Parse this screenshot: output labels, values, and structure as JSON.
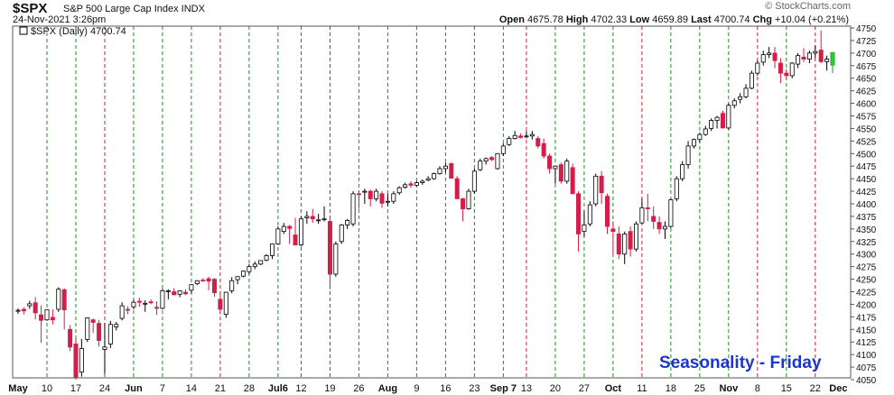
{
  "header": {
    "symbol": "$SPX",
    "description": "S&P 500 Large Cap Index  INDX",
    "datetime": "24-Nov-2021 3:26pm",
    "open_label": "Open",
    "open": "4675.78",
    "high_label": "High",
    "high": "4702.33",
    "low_label": "Low",
    "low": "4659.89",
    "last_label": "Last",
    "last": "4700.74",
    "chg_label": "Chg",
    "chg": "+10.04 (+0.21%)",
    "watermark": "© StockCharts.com"
  },
  "legend": {
    "label": "$SPX (Daily) 4700.74"
  },
  "annotation": {
    "text": "Seasonality - Friday"
  },
  "colors": {
    "up": "#ffffff",
    "down": "#d41e4a",
    "last_up": "#33cc33",
    "green_grid": "#1a8f1a",
    "red_grid": "#cc2222",
    "text_blue": "#1c37c9"
  },
  "chart_data": {
    "type": "candlestick",
    "ylim": [
      4050,
      4750
    ],
    "y_ticks": [
      4050,
      4075,
      4100,
      4125,
      4150,
      4175,
      4200,
      4225,
      4250,
      4275,
      4300,
      4325,
      4350,
      4375,
      4400,
      4425,
      4450,
      4475,
      4500,
      4525,
      4550,
      4575,
      4600,
      4625,
      4650,
      4675,
      4700,
      4725,
      4750
    ],
    "x_labels": [
      "May",
      "10",
      "17",
      "24",
      "Jun",
      "7",
      "14",
      "21",
      "28",
      "Jul6",
      "12",
      "19",
      "26",
      "Aug",
      "9",
      "16",
      "23",
      "Sep 7",
      "13",
      "20",
      "27",
      "Oct",
      "11",
      "18",
      "25",
      "Nov",
      "8",
      "15",
      "22",
      "Dec"
    ],
    "x_label_index": [
      0,
      5,
      10,
      15,
      20,
      25,
      30,
      35,
      40,
      45,
      49,
      54,
      59,
      64,
      69,
      74,
      79,
      84,
      88,
      93,
      98,
      103,
      108,
      113,
      118,
      123,
      128,
      133,
      138,
      142
    ],
    "grid_red_index": [
      15,
      35,
      54,
      88,
      108,
      128,
      138
    ],
    "candles": [
      {
        "o": 4187,
        "h": 4192,
        "l": 4181,
        "c": 4188
      },
      {
        "o": 4190,
        "h": 4194,
        "l": 4180,
        "c": 4187
      },
      {
        "o": 4197,
        "h": 4207,
        "l": 4191,
        "c": 4201
      },
      {
        "o": 4203,
        "h": 4214,
        "l": 4170,
        "c": 4183
      },
      {
        "o": 4179,
        "h": 4198,
        "l": 4123,
        "c": 4168
      },
      {
        "o": 4169,
        "h": 4189,
        "l": 4167,
        "c": 4189
      },
      {
        "o": 4174,
        "h": 4190,
        "l": 4160,
        "c": 4169
      },
      {
        "o": 4190,
        "h": 4234,
        "l": 4185,
        "c": 4230
      },
      {
        "o": 4229,
        "h": 4232,
        "l": 4150,
        "c": 4189
      },
      {
        "o": 4150,
        "h": 4159,
        "l": 4107,
        "c": 4115
      },
      {
        "o": 4121,
        "h": 4132,
        "l": 4050,
        "c": 4055
      },
      {
        "o": 4065,
        "h": 4131,
        "l": 4056,
        "c": 4112
      },
      {
        "o": 4130,
        "h": 4174,
        "l": 4125,
        "c": 4173
      },
      {
        "o": 4169,
        "h": 4172,
        "l": 4143,
        "c": 4164
      },
      {
        "o": 4162,
        "h": 4169,
        "l": 4116,
        "c": 4128
      },
      {
        "o": 4110,
        "h": 4163,
        "l": 4062,
        "c": 4115
      },
      {
        "o": 4121,
        "h": 4167,
        "l": 4113,
        "c": 4160
      },
      {
        "o": 4155,
        "h": 4165,
        "l": 4148,
        "c": 4160
      },
      {
        "o": 4172,
        "h": 4204,
        "l": 4168,
        "c": 4197
      },
      {
        "o": 4190,
        "h": 4196,
        "l": 4180,
        "c": 4188
      },
      {
        "o": 4195,
        "h": 4209,
        "l": 4190,
        "c": 4204
      },
      {
        "o": 4206,
        "h": 4213,
        "l": 4195,
        "c": 4204
      },
      {
        "o": 4201,
        "h": 4208,
        "l": 4185,
        "c": 4202
      },
      {
        "o": 4205,
        "h": 4210,
        "l": 4200,
        "c": 4203
      },
      {
        "o": 4194,
        "h": 4206,
        "l": 4179,
        "c": 4192
      },
      {
        "o": 4192,
        "h": 4231,
        "l": 4190,
        "c": 4227
      },
      {
        "o": 4227,
        "h": 4230,
        "l": 4210,
        "c": 4227
      },
      {
        "o": 4225,
        "h": 4232,
        "l": 4218,
        "c": 4219
      },
      {
        "o": 4220,
        "h": 4228,
        "l": 4214,
        "c": 4227
      },
      {
        "o": 4224,
        "h": 4230,
        "l": 4218,
        "c": 4221
      },
      {
        "o": 4228,
        "h": 4240,
        "l": 4222,
        "c": 4239
      },
      {
        "o": 4241,
        "h": 4248,
        "l": 4238,
        "c": 4247
      },
      {
        "o": 4248,
        "h": 4252,
        "l": 4245,
        "c": 4247
      },
      {
        "o": 4251,
        "h": 4255,
        "l": 4228,
        "c": 4246
      },
      {
        "o": 4250,
        "h": 4252,
        "l": 4215,
        "c": 4223
      },
      {
        "o": 4210,
        "h": 4226,
        "l": 4180,
        "c": 4190
      },
      {
        "o": 4180,
        "h": 4225,
        "l": 4173,
        "c": 4224
      },
      {
        "o": 4227,
        "h": 4254,
        "l": 4222,
        "c": 4247
      },
      {
        "o": 4249,
        "h": 4255,
        "l": 4240,
        "c": 4255
      },
      {
        "o": 4256,
        "h": 4267,
        "l": 4254,
        "c": 4266
      },
      {
        "o": 4265,
        "h": 4280,
        "l": 4260,
        "c": 4275
      },
      {
        "o": 4275,
        "h": 4285,
        "l": 4270,
        "c": 4280
      },
      {
        "o": 4280,
        "h": 4287,
        "l": 4278,
        "c": 4287
      },
      {
        "o": 4288,
        "h": 4300,
        "l": 4286,
        "c": 4297
      },
      {
        "o": 4297,
        "h": 4320,
        "l": 4290,
        "c": 4320
      },
      {
        "o": 4320,
        "h": 4355,
        "l": 4318,
        "c": 4350
      },
      {
        "o": 4345,
        "h": 4362,
        "l": 4340,
        "c": 4355
      },
      {
        "o": 4355,
        "h": 4358,
        "l": 4320,
        "c": 4351
      },
      {
        "o": 4338,
        "h": 4372,
        "l": 4320,
        "c": 4318
      },
      {
        "o": 4318,
        "h": 4375,
        "l": 4315,
        "c": 4370
      },
      {
        "o": 4372,
        "h": 4385,
        "l": 4360,
        "c": 4375
      },
      {
        "o": 4375,
        "h": 4390,
        "l": 4362,
        "c": 4370
      },
      {
        "o": 4368,
        "h": 4380,
        "l": 4360,
        "c": 4368
      },
      {
        "o": 4370,
        "h": 4395,
        "l": 4365,
        "c": 4370
      },
      {
        "o": 4365,
        "h": 4370,
        "l": 4230,
        "c": 4260
      },
      {
        "o": 4260,
        "h": 4325,
        "l": 4255,
        "c": 4320
      },
      {
        "o": 4325,
        "h": 4360,
        "l": 4320,
        "c": 4358
      },
      {
        "o": 4358,
        "h": 4370,
        "l": 4350,
        "c": 4367
      },
      {
        "o": 4360,
        "h": 4425,
        "l": 4355,
        "c": 4420
      },
      {
        "o": 4420,
        "h": 4425,
        "l": 4390,
        "c": 4419
      },
      {
        "o": 4425,
        "h": 4430,
        "l": 4400,
        "c": 4425
      },
      {
        "o": 4425,
        "h": 4428,
        "l": 4395,
        "c": 4410
      },
      {
        "o": 4410,
        "h": 4430,
        "l": 4405,
        "c": 4425
      },
      {
        "o": 4420,
        "h": 4425,
        "l": 4392,
        "c": 4401
      },
      {
        "o": 4405,
        "h": 4420,
        "l": 4395,
        "c": 4405
      },
      {
        "o": 4405,
        "h": 4425,
        "l": 4400,
        "c": 4420
      },
      {
        "o": 4422,
        "h": 4435,
        "l": 4418,
        "c": 4432
      },
      {
        "o": 4433,
        "h": 4442,
        "l": 4430,
        "c": 4438
      },
      {
        "o": 4440,
        "h": 4445,
        "l": 4432,
        "c": 4437
      },
      {
        "o": 4437,
        "h": 4445,
        "l": 4435,
        "c": 4442
      },
      {
        "o": 4442,
        "h": 4448,
        "l": 4438,
        "c": 4445
      },
      {
        "o": 4447,
        "h": 4455,
        "l": 4445,
        "c": 4450
      },
      {
        "o": 4450,
        "h": 4462,
        "l": 4448,
        "c": 4460
      },
      {
        "o": 4460,
        "h": 4475,
        "l": 4458,
        "c": 4470
      },
      {
        "o": 4470,
        "h": 4482,
        "l": 4462,
        "c": 4475
      },
      {
        "o": 4480,
        "h": 4482,
        "l": 4450,
        "c": 4451
      },
      {
        "o": 4450,
        "h": 4455,
        "l": 4410,
        "c": 4410
      },
      {
        "o": 4410,
        "h": 4412,
        "l": 4365,
        "c": 4390
      },
      {
        "o": 4390,
        "h": 4430,
        "l": 4388,
        "c": 4425
      },
      {
        "o": 4425,
        "h": 4470,
        "l": 4420,
        "c": 4465
      },
      {
        "o": 4468,
        "h": 4490,
        "l": 4465,
        "c": 4485
      },
      {
        "o": 4485,
        "h": 4492,
        "l": 4478,
        "c": 4490
      },
      {
        "o": 4492,
        "h": 4495,
        "l": 4485,
        "c": 4488
      },
      {
        "o": 4470,
        "h": 4500,
        "l": 4468,
        "c": 4500
      },
      {
        "o": 4500,
        "h": 4520,
        "l": 4495,
        "c": 4515
      },
      {
        "o": 4518,
        "h": 4535,
        "l": 4515,
        "c": 4530
      },
      {
        "o": 4530,
        "h": 4545,
        "l": 4528,
        "c": 4536
      },
      {
        "o": 4535,
        "h": 4540,
        "l": 4530,
        "c": 4532
      },
      {
        "o": 4534,
        "h": 4545,
        "l": 4530,
        "c": 4535
      },
      {
        "o": 4535,
        "h": 4545,
        "l": 4528,
        "c": 4538
      },
      {
        "o": 4530,
        "h": 4535,
        "l": 4510,
        "c": 4515
      },
      {
        "o": 4520,
        "h": 4530,
        "l": 4490,
        "c": 4495
      },
      {
        "o": 4495,
        "h": 4500,
        "l": 4460,
        "c": 4470
      },
      {
        "o": 4470,
        "h": 4475,
        "l": 4440,
        "c": 4475
      },
      {
        "o": 4478,
        "h": 4482,
        "l": 4440,
        "c": 4445
      },
      {
        "o": 4445,
        "h": 4490,
        "l": 4440,
        "c": 4485
      },
      {
        "o": 4472,
        "h": 4480,
        "l": 4420,
        "c": 4420
      },
      {
        "o": 4420,
        "h": 4425,
        "l": 4305,
        "c": 4340
      },
      {
        "o": 4345,
        "h": 4385,
        "l": 4335,
        "c": 4358
      },
      {
        "o": 4360,
        "h": 4405,
        "l": 4355,
        "c": 4398
      },
      {
        "o": 4400,
        "h": 4460,
        "l": 4395,
        "c": 4455
      },
      {
        "o": 4455,
        "h": 4465,
        "l": 4400,
        "c": 4422
      },
      {
        "o": 4415,
        "h": 4420,
        "l": 4340,
        "c": 4355
      },
      {
        "o": 4350,
        "h": 4365,
        "l": 4300,
        "c": 4345
      },
      {
        "o": 4340,
        "h": 4355,
        "l": 4290,
        "c": 4300
      },
      {
        "o": 4300,
        "h": 4345,
        "l": 4280,
        "c": 4340
      },
      {
        "o": 4345,
        "h": 4355,
        "l": 4295,
        "c": 4310
      },
      {
        "o": 4310,
        "h": 4365,
        "l": 4305,
        "c": 4360
      },
      {
        "o": 4362,
        "h": 4410,
        "l": 4360,
        "c": 4392
      },
      {
        "o": 4392,
        "h": 4420,
        "l": 4365,
        "c": 4390
      },
      {
        "o": 4375,
        "h": 4395,
        "l": 4350,
        "c": 4365
      },
      {
        "o": 4363,
        "h": 4375,
        "l": 4340,
        "c": 4350
      },
      {
        "o": 4350,
        "h": 4365,
        "l": 4330,
        "c": 4355
      },
      {
        "o": 4355,
        "h": 4410,
        "l": 4352,
        "c": 4408
      },
      {
        "o": 4410,
        "h": 4455,
        "l": 4405,
        "c": 4450
      },
      {
        "o": 4450,
        "h": 4485,
        "l": 4445,
        "c": 4478
      },
      {
        "o": 4478,
        "h": 4525,
        "l": 4470,
        "c": 4515
      },
      {
        "o": 4515,
        "h": 4530,
        "l": 4510,
        "c": 4528
      },
      {
        "o": 4528,
        "h": 4542,
        "l": 4522,
        "c": 4538
      },
      {
        "o": 4538,
        "h": 4555,
        "l": 4535,
        "c": 4549
      },
      {
        "o": 4550,
        "h": 4570,
        "l": 4545,
        "c": 4566
      },
      {
        "o": 4566,
        "h": 4575,
        "l": 4550,
        "c": 4572
      },
      {
        "o": 4580,
        "h": 4585,
        "l": 4550,
        "c": 4551
      },
      {
        "o": 4551,
        "h": 4600,
        "l": 4548,
        "c": 4596
      },
      {
        "o": 4596,
        "h": 4610,
        "l": 4590,
        "c": 4605
      },
      {
        "o": 4608,
        "h": 4620,
        "l": 4600,
        "c": 4613
      },
      {
        "o": 4613,
        "h": 4638,
        "l": 4610,
        "c": 4630
      },
      {
        "o": 4630,
        "h": 4665,
        "l": 4628,
        "c": 4660
      },
      {
        "o": 4660,
        "h": 4685,
        "l": 4655,
        "c": 4680
      },
      {
        "o": 4682,
        "h": 4705,
        "l": 4675,
        "c": 4697
      },
      {
        "o": 4697,
        "h": 4712,
        "l": 4690,
        "c": 4700
      },
      {
        "o": 4700,
        "h": 4712,
        "l": 4670,
        "c": 4685
      },
      {
        "o": 4680,
        "h": 4690,
        "l": 4640,
        "c": 4660
      },
      {
        "o": 4660,
        "h": 4668,
        "l": 4648,
        "c": 4655
      },
      {
        "o": 4655,
        "h": 4682,
        "l": 4650,
        "c": 4680
      },
      {
        "o": 4678,
        "h": 4700,
        "l": 4670,
        "c": 4695
      },
      {
        "o": 4692,
        "h": 4710,
        "l": 4682,
        "c": 4688
      },
      {
        "o": 4688,
        "h": 4705,
        "l": 4680,
        "c": 4700
      },
      {
        "o": 4700,
        "h": 4715,
        "l": 4690,
        "c": 4703
      },
      {
        "o": 4706,
        "h": 4745,
        "l": 4680,
        "c": 4683
      },
      {
        "o": 4683,
        "h": 4695,
        "l": 4665,
        "c": 4688
      },
      {
        "o": 4676,
        "h": 4702,
        "l": 4660,
        "c": 4701
      }
    ]
  }
}
